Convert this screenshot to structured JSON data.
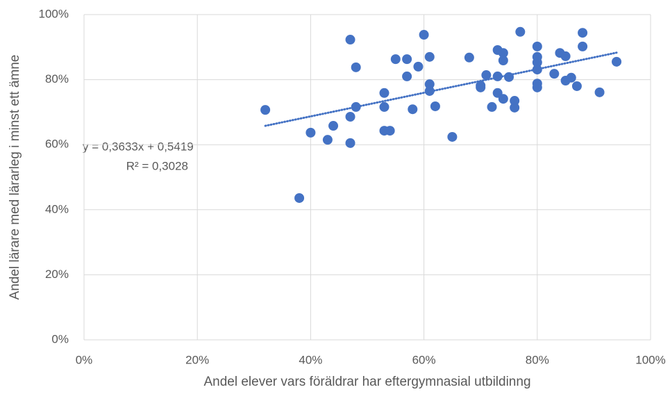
{
  "chart_data": {
    "type": "scatter",
    "xlabel": "Andel elever vars föräldrar har eftergymnasial utbildinng",
    "ylabel": "Andel lärare med lärarleg i minst ett ämne",
    "annotations": [
      "y = 0,3633x + 0,5419",
      "R² = 0,3028"
    ],
    "color": "#4472c4",
    "x": [
      32,
      38,
      40,
      43,
      44,
      47,
      47,
      47,
      48,
      48,
      53,
      53,
      53,
      54,
      55,
      57,
      57,
      58,
      59,
      60,
      61,
      61,
      61,
      62,
      65,
      68,
      70,
      70,
      71,
      72,
      73,
      73,
      73,
      74,
      74,
      74,
      75,
      76,
      76,
      77,
      80,
      80,
      80,
      80,
      80,
      80,
      83,
      84,
      85,
      85,
      86,
      87,
      88,
      88,
      91,
      94
    ],
    "values": [
      70.7,
      43.6,
      63.7,
      61.5,
      65.8,
      92.3,
      68.6,
      60.5,
      83.8,
      71.6,
      75.9,
      71.6,
      64.3,
      64.3,
      86.3,
      86.3,
      81.0,
      70.9,
      84.0,
      93.8,
      87.0,
      78.6,
      76.5,
      71.8,
      62.4,
      86.8,
      78.2,
      77.6,
      81.4,
      71.6,
      89.1,
      81.0,
      75.9,
      88.2,
      85.9,
      74.1,
      80.8,
      73.5,
      71.4,
      94.7,
      90.2,
      87.0,
      85.3,
      83.1,
      78.8,
      77.6,
      81.8,
      88.2,
      87.2,
      79.7,
      80.6,
      78.0,
      94.4,
      90.2,
      76.1,
      85.5
    ],
    "trendline": {
      "color": "#4472c4",
      "x": [
        32,
        94
      ],
      "y": [
        65.8,
        88.3
      ]
    },
    "xlim": [
      0,
      100
    ],
    "ylim": [
      0,
      100
    ],
    "xticks": [
      {
        "value": 0,
        "label": "0%"
      },
      {
        "value": 20,
        "label": "20%"
      },
      {
        "value": 40,
        "label": "40%"
      },
      {
        "value": 60,
        "label": "60%"
      },
      {
        "value": 80,
        "label": "80%"
      },
      {
        "value": 100,
        "label": "100%"
      }
    ],
    "yticks": [
      {
        "value": 0,
        "label": "0%"
      },
      {
        "value": 20,
        "label": "20%"
      },
      {
        "value": 40,
        "label": "40%"
      },
      {
        "value": 60,
        "label": "60%"
      },
      {
        "value": 80,
        "label": "80%"
      },
      {
        "value": 100,
        "label": "100%"
      }
    ],
    "grid": true
  }
}
